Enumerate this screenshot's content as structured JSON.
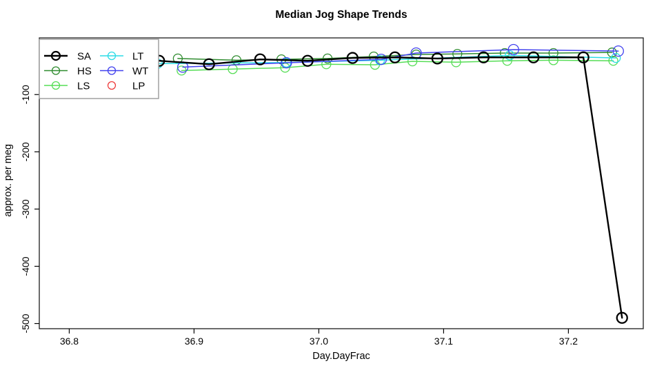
{
  "title": "Median Jog Shape Trends",
  "chart_data": {
    "type": "line",
    "title": "Median Jog Shape Trends",
    "xlabel": "Day.DayFrac",
    "ylabel": "approx. per meg",
    "xlim": [
      36.776,
      37.26
    ],
    "ylim": [
      -509,
      -1
    ],
    "grid": false,
    "xticks": {
      "values": [
        36.8,
        36.9,
        37.0,
        37.1,
        37.2
      ],
      "labels": [
        "36.8",
        "36.9",
        "37.0",
        "37.1",
        "37.2"
      ]
    },
    "yticks": {
      "values": [
        -500,
        -400,
        -300,
        -200,
        -100
      ],
      "labels": [
        "-500",
        "-400",
        "-300",
        "-200",
        "-100"
      ]
    },
    "ytick_label_rotation": -90,
    "legend_position": "top-left",
    "series": [
      {
        "name": "LS",
        "color": "#55DD55",
        "line_width": 1.5,
        "marker": "open-circle",
        "marker_radius": 6.5,
        "marker_stroke": 1.3,
        "in_legend_line": true,
        "x": [
          36.89,
          36.931,
          36.973,
          37.006,
          37.045,
          37.075,
          37.11,
          37.151,
          37.188,
          37.236
        ],
        "y": [
          -58,
          -55.5,
          -53,
          -47,
          -48,
          -42,
          -43.5,
          -41,
          -40,
          -41
        ]
      },
      {
        "name": "HS",
        "color": "#2E8B2E",
        "line_width": 1.5,
        "marker": "open-circle",
        "marker_radius": 6.5,
        "marker_stroke": 1.3,
        "in_legend_line": true,
        "x": [
          36.887,
          36.934,
          36.97,
          37.007,
          37.044,
          37.078,
          37.111,
          37.149,
          37.188,
          37.235
        ],
        "y": [
          -37,
          -40,
          -38.5,
          -37,
          -33.5,
          -30,
          -29,
          -27.5,
          -27.5,
          -26.5
        ]
      },
      {
        "name": "LT",
        "color": "#2BDCE6",
        "line_width": 1.5,
        "marker": "open-circle",
        "marker_radius": 6.5,
        "marker_stroke": 1.3,
        "in_legend_line": true,
        "x": [
          36.871,
          36.974,
          37.049,
          37.153,
          37.238
        ],
        "y": [
          -46,
          -44,
          -40,
          -31.5,
          -36
        ]
      },
      {
        "name": "WT",
        "color": "#4040EE",
        "line_width": 1.5,
        "marker": "open-circle",
        "marker_radius": 7.5,
        "marker_stroke": 1.3,
        "in_legend_line": true,
        "x": [
          36.891,
          36.974,
          37.05,
          37.078,
          37.156,
          37.24
        ],
        "y": [
          -52,
          -44.5,
          -38.5,
          -27.5,
          -21.5,
          -24
        ]
      },
      {
        "name": "SA",
        "color": "#000000",
        "line_width": 2.4,
        "marker": "open-circle",
        "marker_radius": 7.5,
        "marker_stroke": 2.3,
        "in_legend_line": true,
        "x": [
          36.872,
          36.912,
          36.953,
          36.991,
          37.027,
          37.061,
          37.095,
          37.132,
          37.172,
          37.212,
          37.243
        ],
        "y": [
          -41,
          -47,
          -38.5,
          -41,
          -36,
          -35,
          -37,
          -35,
          -35,
          -35,
          -490
        ]
      },
      {
        "name": "LP",
        "color": "#EE3B3B",
        "line_width": 1.5,
        "marker": "open-circle",
        "marker_radius": 5.5,
        "marker_stroke": 1.3,
        "in_legend_line": false,
        "x": [],
        "y": []
      }
    ],
    "legend": {
      "columns": [
        [
          "SA",
          "HS",
          "LS"
        ],
        [
          "LT",
          "WT",
          "LP"
        ]
      ],
      "border_color": "#9A9A9A",
      "background": "#FFFFFF"
    }
  },
  "colors": {
    "SA": "#000000",
    "HS": "#2E8B2E",
    "LS": "#55DD55",
    "LT": "#2BDCE6",
    "WT": "#4040EE",
    "LP": "#EE3B3B",
    "axis": "#000000",
    "plot_border": "#1A1A1A",
    "background": "#FFFFFF"
  }
}
